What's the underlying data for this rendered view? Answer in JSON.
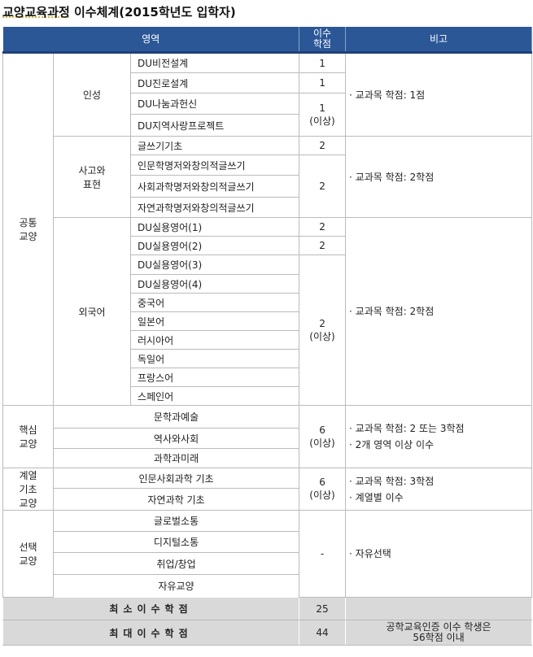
{
  "title_underlined": "교양교육과정",
  "title_rest": " 이수체계(2015학년도 입학자)",
  "header": {
    "area": "영역",
    "credits": "이수\n학점",
    "note": "비고"
  },
  "common": {
    "label": "공통\n교양",
    "groups": [
      {
        "label": "인성",
        "courses": [
          "DU비전설계",
          "DU진로설계",
          "DU나눔과헌신",
          "DU지역사랑프로젝트"
        ],
        "credits": [
          "1",
          "1",
          "1\n(이상)"
        ],
        "note": "· 교과목 학점: 1점"
      },
      {
        "label": "사고와\n표현",
        "courses": [
          "글쓰기기초",
          "인문학명저와창의적글쓰기",
          "사회과학명저와창의적글쓰기",
          "자연과학명저와창의적글쓰기"
        ],
        "credits": [
          "2",
          "2"
        ],
        "note": "· 교과목 학점: 2학점"
      },
      {
        "label": "외국어",
        "courses": [
          "DU실용영어(1)",
          "DU실용영어(2)",
          "DU실용영어(3)",
          "DU실용영어(4)",
          "중국어",
          "일본어",
          "러시아어",
          "독일어",
          "프랑스어",
          "스페인어"
        ],
        "credits": [
          "2",
          "2",
          "2\n(이상)"
        ],
        "note": "· 교과목 학점: 2학점"
      }
    ]
  },
  "core": {
    "label": "핵심\n교양",
    "courses": [
      "문학과예술",
      "역사와사회",
      "과학과미래"
    ],
    "credits": "6\n(이상)",
    "notes": [
      "· 교과목 학점: 2 또는 3학점",
      "· 2개 영역 이상 이수"
    ]
  },
  "basic": {
    "label": "계열\n기초\n교양",
    "courses": [
      "인문사회과학 기초",
      "자연과학 기초"
    ],
    "credits": "6\n(이상)",
    "notes": [
      "· 교과목 학점: 3학점",
      "· 계열별 이수"
    ]
  },
  "elective": {
    "label": "선택\n교양",
    "courses": [
      "글로벌소통",
      "디지털소통",
      "취업/창업",
      "자유교양"
    ],
    "credits": "-",
    "note": "· 자유선택"
  },
  "totals": [
    {
      "label": "최소이수학점",
      "credits": "25",
      "note": ""
    },
    {
      "label": "최대이수학점",
      "credits": "44",
      "note": "공학교육인증 이수 학생은\n56학점 이내"
    }
  ]
}
